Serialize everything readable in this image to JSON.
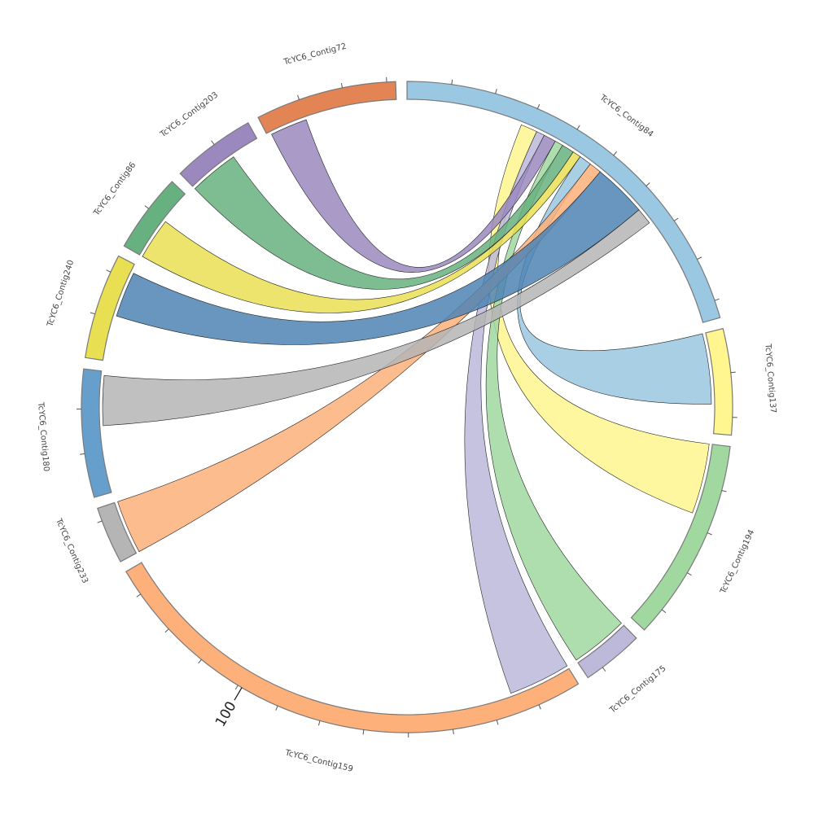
{
  "chart_data": {
    "type": "chord",
    "title": "",
    "unit_tick_label": "100",
    "unit_tick_value": 100,
    "segments": [
      {
        "name": "TcYC6_Contig84",
        "length": 94,
        "color": "#9ac7e1"
      },
      {
        "name": "TcYC6_Contig137",
        "length": 24,
        "color": "#fff68f"
      },
      {
        "name": "TcYC6_Contig194",
        "length": 46,
        "color": "#a1d8a0"
      },
      {
        "name": "TcYC6_Contig175",
        "length": 14,
        "color": "#bcb9da"
      },
      {
        "name": "TcYC6_Contig159",
        "length": 116,
        "color": "#fdb07a"
      },
      {
        "name": "TcYC6_Contig233",
        "length": 13,
        "color": "#b5b5b5"
      },
      {
        "name": "TcYC6_Contig180",
        "length": 29,
        "color": "#669ecc"
      },
      {
        "name": "TcYC6_Contig240",
        "length": 24,
        "color": "#e9df52"
      },
      {
        "name": "TcYC6_Contig86",
        "length": 18,
        "color": "#67b07f"
      },
      {
        "name": "TcYC6_Contig203",
        "length": 19,
        "color": "#9a88be"
      },
      {
        "name": "TcYC6_Contig72",
        "length": 32,
        "color": "#e38455"
      }
    ],
    "chords": [
      {
        "from": "TcYC6_Contig194",
        "from_range": [
          0,
          17
        ],
        "to": "TcYC6_Contig84",
        "to_range": [
          28,
          32
        ],
        "color": "#fff68f"
      },
      {
        "from": "TcYC6_Contig159",
        "from_range": [
          0,
          15
        ],
        "to": "TcYC6_Contig84",
        "to_range": [
          32,
          34
        ],
        "color": "#bcb9da"
      },
      {
        "from": "TcYC6_Contig72",
        "from_range": [
          1,
          10
        ],
        "to": "TcYC6_Contig84",
        "to_range": [
          34,
          37
        ],
        "color": "#9a88be"
      },
      {
        "from": "TcYC6_Contig175",
        "from_range": [
          0,
          14
        ],
        "to": "TcYC6_Contig84",
        "to_range": [
          37,
          39
        ],
        "color": "#a1d8a0"
      },
      {
        "from": "TcYC6_Contig203",
        "from_range": [
          0,
          12
        ],
        "to": "TcYC6_Contig84",
        "to_range": [
          39,
          42
        ],
        "color": "#67b07f"
      },
      {
        "from": "TcYC6_Contig86",
        "from_range": [
          0,
          10
        ],
        "to": "TcYC6_Contig84",
        "to_range": [
          42,
          44
        ],
        "color": "#e9df52"
      },
      {
        "from": "TcYC6_Contig137",
        "from_range": [
          0,
          17
        ],
        "to": "TcYC6_Contig84",
        "to_range": [
          44,
          47
        ],
        "color": "#9ac7e1"
      },
      {
        "from": "TcYC6_Contig233",
        "from_range": [
          0,
          13
        ],
        "to": "TcYC6_Contig84",
        "to_range": [
          47,
          50
        ],
        "color": "#fdb07a"
      },
      {
        "from": "TcYC6_Contig240",
        "from_range": [
          11,
          22
        ],
        "to": "TcYC6_Contig84",
        "to_range": [
          50,
          63
        ],
        "color": "#4f84b4"
      },
      {
        "from": "TcYC6_Contig180",
        "from_range": [
          16,
          28
        ],
        "to": "TcYC6_Contig84",
        "to_range": [
          63,
          67
        ],
        "color": "#b5b5b5"
      }
    ]
  }
}
